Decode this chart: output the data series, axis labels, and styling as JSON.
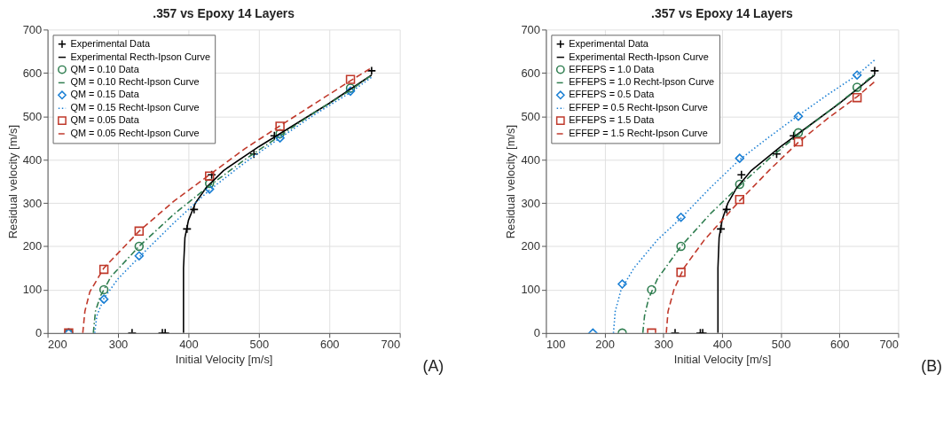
{
  "chart_data": [
    {
      "type": "line",
      "title": ".357 vs Epoxy 14 Layers",
      "xlabel": "Initial Velocity [m/s]",
      "ylabel": "Residual velocity [m/s]",
      "xlim": [
        200,
        700
      ],
      "xticks": [
        200,
        300,
        400,
        500,
        600,
        700
      ],
      "ylim": [
        0,
        700
      ],
      "yticks": [
        0,
        100,
        200,
        300,
        400,
        500,
        600,
        700
      ],
      "grid": true,
      "legend": "top left",
      "annotations": [
        "(A)"
      ],
      "series": [
        {
          "name": "Experimental Data",
          "type": "scatter",
          "marker": "cross",
          "color": "#000000",
          "x": [
            320,
            363,
            367,
            398,
            408,
            433,
            493,
            522,
            660
          ],
          "values": [
            0,
            0,
            0,
            240,
            285,
            365,
            413,
            455,
            605
          ]
        },
        {
          "name": "Experimental Recth-Ipson Curve",
          "line_style": "solid",
          "color": "#000000",
          "x": [
            393,
            393,
            395,
            400,
            410,
            425,
            450,
            500,
            550,
            600,
            660
          ],
          "values": [
            0,
            150,
            220,
            260,
            300,
            335,
            375,
            430,
            480,
            530,
            595
          ]
        },
        {
          "name": "QM = 0.10 Data",
          "type": "scatter",
          "marker": "circle",
          "color": "#2e7d4f",
          "x": [
            230,
            280,
            330,
            430,
            530,
            630
          ],
          "values": [
            0,
            100,
            200,
            345,
            460,
            565
          ]
        },
        {
          "name": "QM = 0.10 Recht-Ipson Curve",
          "line_style": "dashdot",
          "color": "#2e7d4f",
          "x": [
            265,
            268,
            275,
            290,
            330,
            380,
            430,
            480,
            530,
            580,
            630,
            660
          ],
          "values": [
            0,
            50,
            85,
            130,
            200,
            275,
            340,
            400,
            455,
            510,
            560,
            595
          ]
        },
        {
          "name": "QM = 0.15 Data",
          "type": "scatter",
          "marker": "diamond",
          "color": "#1a7fd4",
          "x": [
            230,
            280,
            330,
            430,
            530,
            630
          ],
          "values": [
            0,
            78,
            178,
            332,
            450,
            558
          ]
        },
        {
          "name": "QM = 0.15 Recht-Ipson Curve",
          "line_style": "dotted",
          "color": "#1a7fd4",
          "x": [
            267,
            270,
            280,
            300,
            330,
            380,
            430,
            480,
            530,
            580,
            630,
            660
          ],
          "values": [
            0,
            40,
            80,
            125,
            175,
            255,
            330,
            393,
            450,
            505,
            555,
            590
          ]
        },
        {
          "name": "QM = 0.05 Data",
          "type": "scatter",
          "marker": "square",
          "color": "#c0392b",
          "x": [
            230,
            280,
            330,
            430,
            530,
            630
          ],
          "values": [
            0,
            147,
            235,
            362,
            477,
            585
          ]
        },
        {
          "name": "QM = 0.05 Recht-Ipson Curve",
          "line_style": "dashed",
          "color": "#c0392b",
          "x": [
            250,
            253,
            260,
            280,
            330,
            380,
            430,
            480,
            530,
            580,
            630,
            660
          ],
          "values": [
            0,
            50,
            95,
            150,
            235,
            305,
            365,
            425,
            478,
            530,
            582,
            612
          ]
        }
      ]
    },
    {
      "type": "line",
      "title": ".357 vs Epoxy 14 Layers",
      "xlabel": "Initial Velocity [m/s]",
      "ylabel": "Residual velocity [m/s]",
      "xlim": [
        100,
        700
      ],
      "xticks": [
        100,
        200,
        300,
        400,
        500,
        600,
        700
      ],
      "ylim": [
        0,
        700
      ],
      "yticks": [
        0,
        100,
        200,
        300,
        400,
        500,
        600,
        700
      ],
      "grid": true,
      "legend": "top left",
      "annotations": [
        "(B)"
      ],
      "series": [
        {
          "name": "Experimental Data",
          "type": "scatter",
          "marker": "cross",
          "color": "#000000",
          "x": [
            320,
            363,
            367,
            398,
            408,
            433,
            493,
            522,
            660
          ],
          "values": [
            0,
            0,
            0,
            240,
            285,
            365,
            413,
            455,
            605
          ]
        },
        {
          "name": "Experimental Recth-Ipson Curve",
          "line_style": "solid",
          "color": "#000000",
          "x": [
            393,
            393,
            395,
            400,
            410,
            425,
            450,
            500,
            550,
            600,
            660
          ],
          "values": [
            0,
            150,
            220,
            260,
            300,
            335,
            375,
            430,
            480,
            530,
            595
          ]
        },
        {
          "name": "EFFEPS = 1.0 Data",
          "type": "scatter",
          "marker": "circle",
          "color": "#2e7d4f",
          "x": [
            230,
            280,
            330,
            430,
            530,
            630
          ],
          "values": [
            0,
            100,
            200,
            343,
            462,
            567
          ]
        },
        {
          "name": "EFFEPS = 1.0 Recht-Ipson Curve",
          "line_style": "dashdot",
          "color": "#2e7d4f",
          "x": [
            265,
            268,
            275,
            290,
            330,
            380,
            430,
            480,
            530,
            580,
            630,
            660
          ],
          "values": [
            0,
            40,
            80,
            125,
            200,
            275,
            340,
            402,
            458,
            510,
            563,
            598
          ]
        },
        {
          "name": "EFFEPS = 0.5 Data",
          "type": "scatter",
          "marker": "diamond",
          "color": "#1a7fd4",
          "x": [
            180,
            230,
            330,
            430,
            530,
            630
          ],
          "values": [
            0,
            113,
            267,
            403,
            500,
            595
          ]
        },
        {
          "name": "EFFEP = 0.5 Recht-Ipson Curve",
          "line_style": "dotted",
          "color": "#1a7fd4",
          "x": [
            215,
            218,
            228,
            250,
            290,
            330,
            380,
            430,
            480,
            530,
            580,
            630,
            660
          ],
          "values": [
            0,
            50,
            100,
            150,
            215,
            265,
            335,
            400,
            452,
            502,
            550,
            595,
            630
          ]
        },
        {
          "name": "EFFEPS = 1.5 Data",
          "type": "scatter",
          "marker": "square",
          "color": "#c0392b",
          "x": [
            280,
            330,
            430,
            530,
            630
          ],
          "values": [
            0,
            140,
            308,
            441,
            543
          ]
        },
        {
          "name": "EFFEP = 1.5 Recht-Ipson Curve",
          "line_style": "dashed",
          "color": "#c0392b",
          "x": [
            305,
            308,
            318,
            335,
            370,
            400,
            430,
            480,
            530,
            580,
            630,
            660
          ],
          "values": [
            0,
            50,
            100,
            150,
            215,
            260,
            305,
            375,
            440,
            495,
            545,
            580
          ]
        }
      ]
    }
  ]
}
